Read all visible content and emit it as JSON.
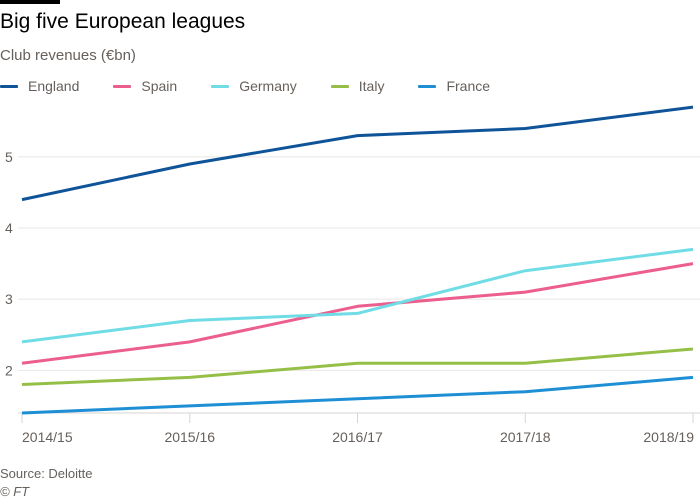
{
  "chart_data": {
    "type": "line",
    "title": "Big five European leagues",
    "subtitle": "Club revenues (€bn)",
    "xlabel": "",
    "ylabel": "Club revenues (€bn)",
    "categories": [
      "2014/15",
      "2015/16",
      "2016/17",
      "2017/18",
      "2018/19"
    ],
    "series": [
      {
        "name": "England",
        "color": "#0f5499",
        "values": [
          4.4,
          4.9,
          5.3,
          5.4,
          5.7
        ]
      },
      {
        "name": "Spain",
        "color": "#eb5e8d",
        "values": [
          2.1,
          2.4,
          2.9,
          3.1,
          3.5
        ]
      },
      {
        "name": "Germany",
        "color": "#70dce6",
        "values": [
          2.4,
          2.7,
          2.8,
          3.4,
          3.7
        ]
      },
      {
        "name": "Italy",
        "color": "#96bf48",
        "values": [
          1.8,
          1.9,
          2.1,
          2.1,
          2.3
        ]
      },
      {
        "name": "France",
        "color": "#1e8fd5",
        "values": [
          1.4,
          1.5,
          1.6,
          1.7,
          1.9
        ]
      }
    ],
    "yticks": [
      2,
      3,
      4,
      5
    ],
    "ylim": [
      1.4,
      5.8
    ],
    "grid": true,
    "legend": "top-left"
  },
  "footer": {
    "source": "Source: Deloitte",
    "copyright": "© FT"
  }
}
